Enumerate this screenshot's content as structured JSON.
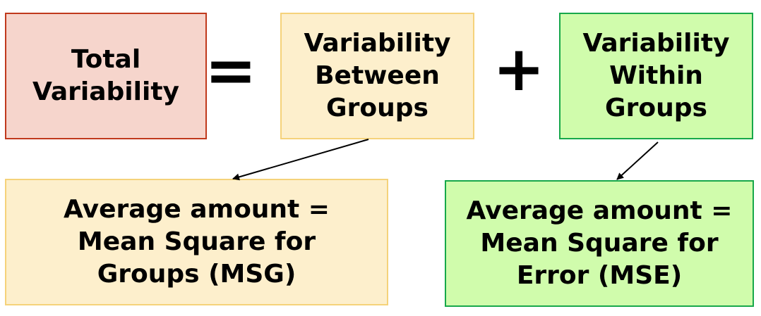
{
  "equation": {
    "total": "Total\nVariability",
    "equals": "=",
    "between": "Variability\nBetween\nGroups",
    "plus": "+",
    "within": "Variability\nWithin\nGroups"
  },
  "averages": {
    "msg": "Average amount =\nMean Square for\nGroups (MSG)",
    "mse": "Average amount =\nMean Square for\nError (MSE)"
  },
  "colors": {
    "total_fill": "#f6d5cc",
    "total_border": "#c0391c",
    "groups_fill": "#fdefcc",
    "groups_border": "#f5d27a",
    "error_fill": "#d0fcac",
    "error_border": "#17a84a"
  }
}
